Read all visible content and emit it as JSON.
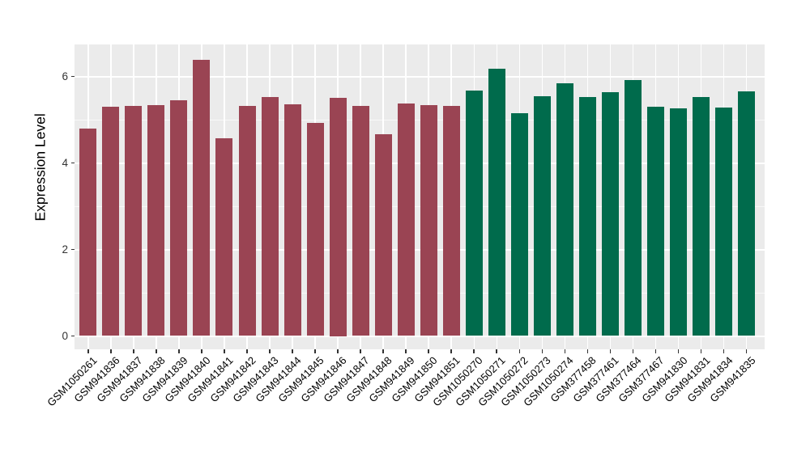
{
  "chart_data": {
    "type": "bar",
    "title": "",
    "xlabel": "",
    "ylabel": "Expression Level",
    "ylim": [
      -0.32,
      6.72
    ],
    "yticks": [
      0,
      2,
      4,
      6
    ],
    "yminorticks": [
      1,
      3,
      5
    ],
    "legend_position": "none",
    "grid": {
      "panel_background": "#EBEBEB",
      "major_gridline_color": "#FFFFFF",
      "minor_gridline_color": "#FFFFFF"
    },
    "categories": [
      "GSM1050261",
      "GSM941836",
      "GSM941837",
      "GSM941838",
      "GSM941839",
      "GSM941840",
      "GSM941841",
      "GSM941842",
      "GSM941843",
      "GSM941844",
      "GSM941845",
      "GSM941846",
      "GSM941847",
      "GSM941848",
      "GSM941849",
      "GSM941850",
      "GSM941851",
      "GSM1050270",
      "GSM1050271",
      "GSM1050272",
      "GSM1050273",
      "GSM1050274",
      "GSM377458",
      "GSM377461",
      "GSM377464",
      "GSM377467",
      "GSM941830",
      "GSM941831",
      "GSM941834",
      "GSM941835"
    ],
    "values": [
      4.79,
      5.29,
      5.32,
      5.34,
      5.44,
      6.39,
      4.57,
      5.32,
      5.52,
      5.36,
      4.93,
      5.5,
      5.32,
      4.66,
      5.38,
      5.34,
      5.31,
      5.67,
      6.18,
      5.15,
      5.54,
      5.84,
      5.52,
      5.63,
      5.91,
      5.29,
      5.26,
      5.52,
      5.28,
      5.66
    ],
    "groups": [
      0,
      0,
      0,
      0,
      0,
      0,
      0,
      0,
      0,
      0,
      0,
      0,
      0,
      0,
      0,
      0,
      0,
      1,
      1,
      1,
      1,
      1,
      1,
      1,
      1,
      1,
      1,
      1,
      1,
      1
    ],
    "group_colors": [
      "#9A4453",
      "#006B4C"
    ]
  }
}
